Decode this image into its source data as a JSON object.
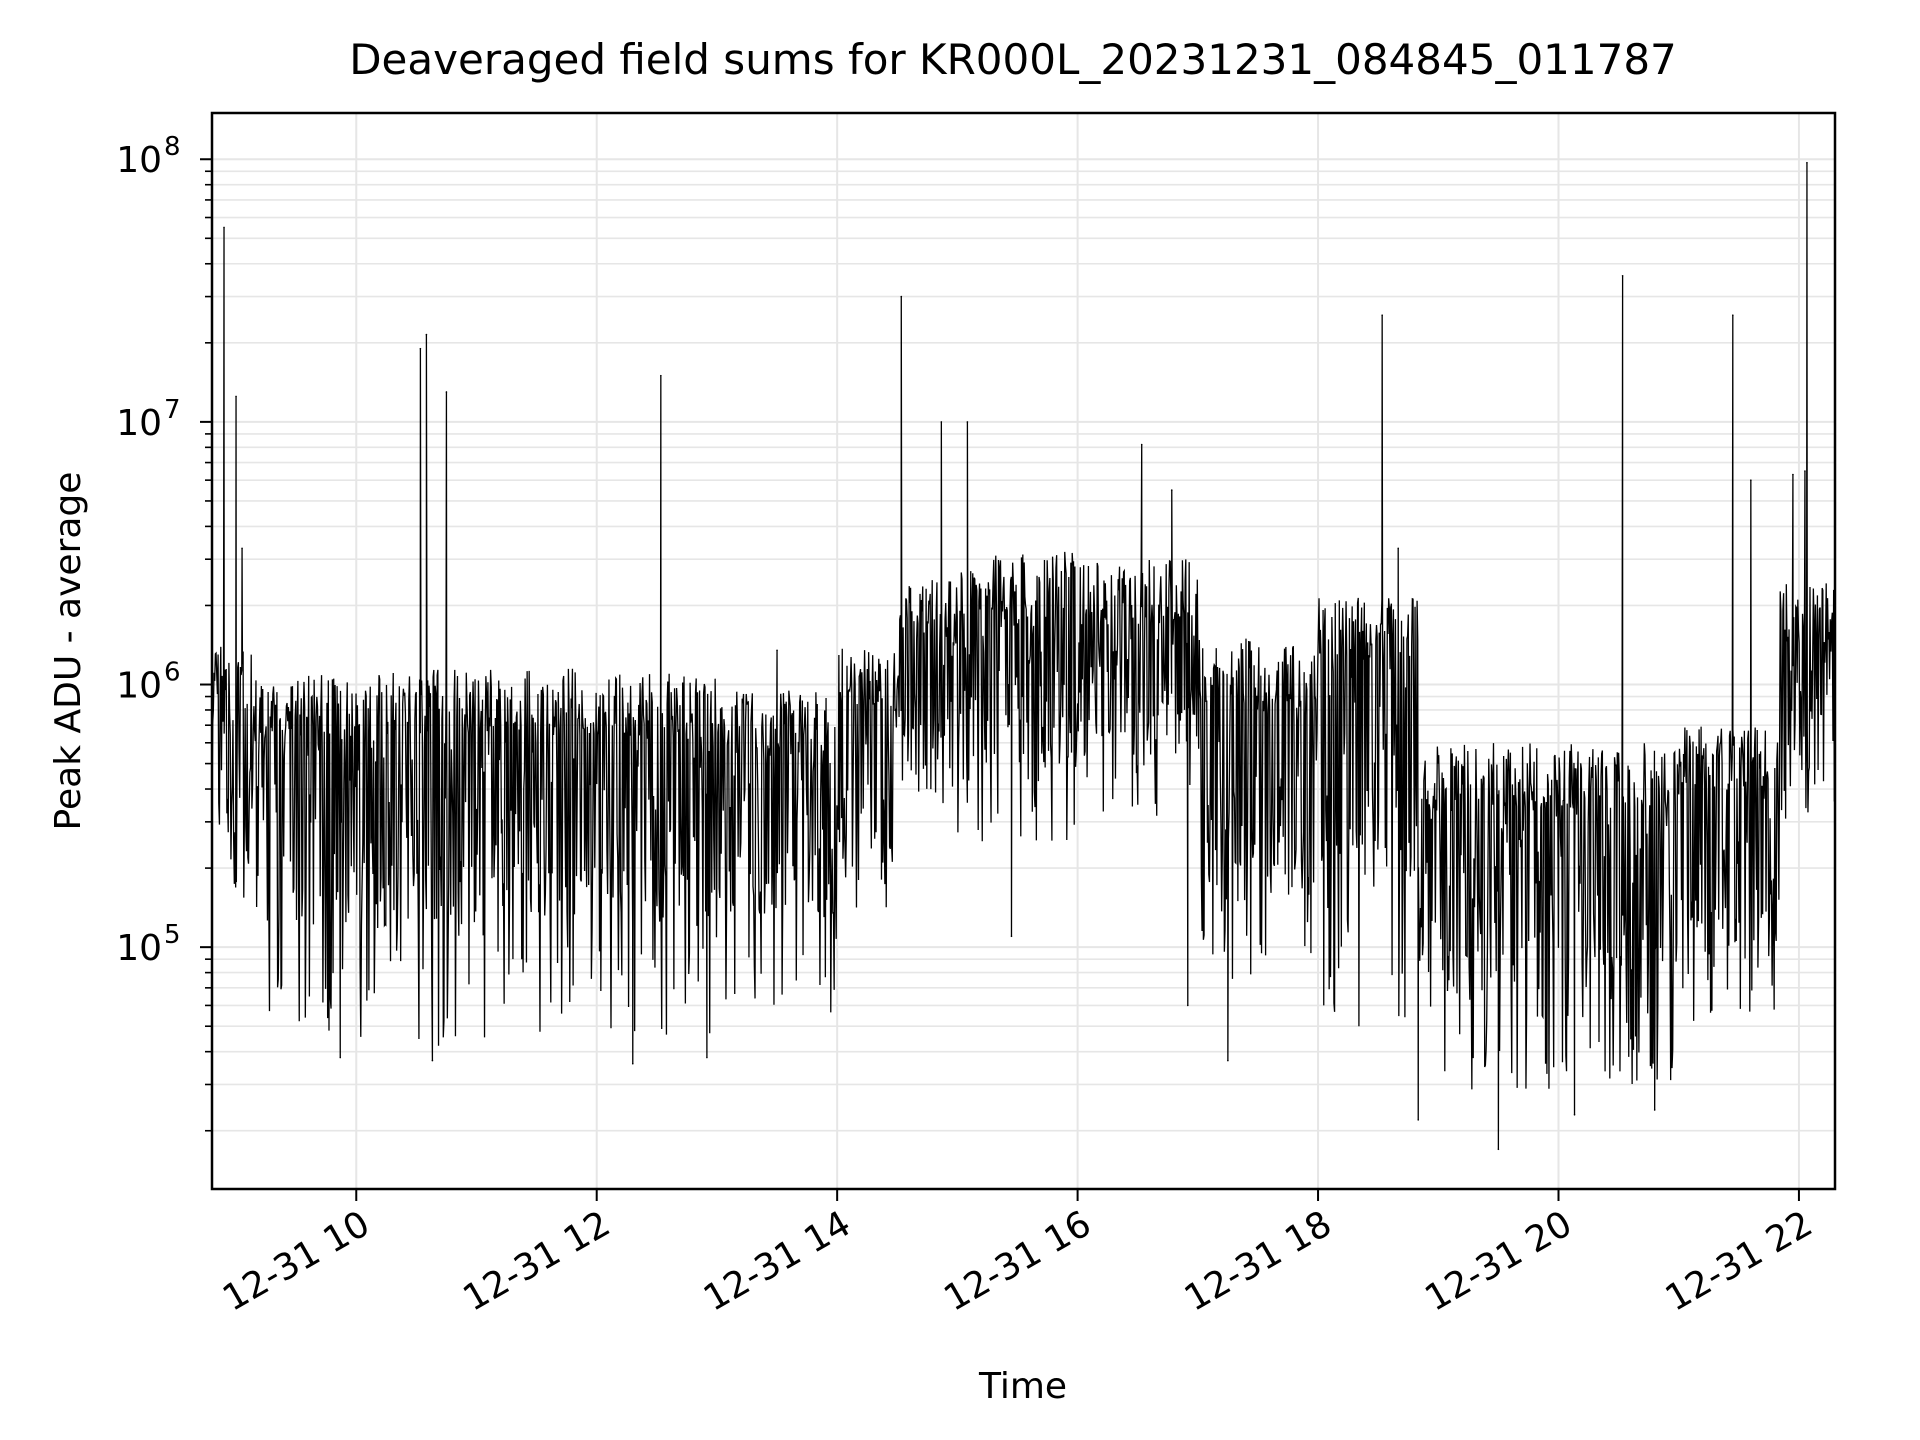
{
  "chart_data": {
    "type": "line",
    "title": "Deaveraged field sums for KR000L_20231231_084845_011787",
    "xlabel": "Time",
    "ylabel": "Peak ADU - average",
    "x_axis": {
      "kind": "datetime",
      "date": "2023-12-31",
      "range": [
        "2023-12-31 08:48",
        "2023-12-31 22:18"
      ],
      "ticks": [
        {
          "hour": 10,
          "label": "12-31 10"
        },
        {
          "hour": 12,
          "label": "12-31 12"
        },
        {
          "hour": 14,
          "label": "12-31 14"
        },
        {
          "hour": 16,
          "label": "12-31 16"
        },
        {
          "hour": 18,
          "label": "12-31 18"
        },
        {
          "hour": 20,
          "label": "12-31 20"
        },
        {
          "hour": 22,
          "label": "12-31 22"
        }
      ]
    },
    "y_axis": {
      "scale": "log",
      "range": [
        12000,
        150000000
      ],
      "ticks": [
        {
          "value": 100000,
          "base": "10",
          "exp": "5"
        },
        {
          "value": 1000000,
          "base": "10",
          "exp": "6"
        },
        {
          "value": 10000000,
          "base": "10",
          "exp": "7"
        },
        {
          "value": 100000000,
          "base": "10",
          "exp": "8"
        }
      ]
    },
    "grid": true,
    "legend": "none",
    "line_color": "#000000",
    "grid_color": "#e6e6e6",
    "segments": [
      {
        "start": "08:48",
        "end": "09:10",
        "hi": 1400000,
        "lo": 150000
      },
      {
        "start": "09:10",
        "end": "10:00",
        "hi": 1100000,
        "lo": 45000
      },
      {
        "start": "10:00",
        "end": "11:00",
        "hi": 1150000,
        "lo": 42000
      },
      {
        "start": "11:00",
        "end": "12:00",
        "hi": 1150000,
        "lo": 45000
      },
      {
        "start": "12:00",
        "end": "13:00",
        "hi": 1100000,
        "lo": 45000
      },
      {
        "start": "13:00",
        "end": "14:00",
        "hi": 950000,
        "lo": 55000
      },
      {
        "start": "14:00",
        "end": "14:30",
        "hi": 1400000,
        "lo": 120000
      },
      {
        "start": "14:30",
        "end": "15:00",
        "hi": 2500000,
        "lo": 300000
      },
      {
        "start": "15:00",
        "end": "16:00",
        "hi": 3200000,
        "lo": 250000
      },
      {
        "start": "16:00",
        "end": "17:00",
        "hi": 3000000,
        "lo": 300000
      },
      {
        "start": "17:00",
        "end": "17:30",
        "hi": 1500000,
        "lo": 70000
      },
      {
        "start": "17:30",
        "end": "18:00",
        "hi": 1400000,
        "lo": 60000
      },
      {
        "start": "18:00",
        "end": "18:50",
        "hi": 2200000,
        "lo": 50000
      },
      {
        "start": "18:50",
        "end": "20:00",
        "hi": 600000,
        "lo": 28000
      },
      {
        "start": "20:00",
        "end": "21:00",
        "hi": 600000,
        "lo": 30000
      },
      {
        "start": "21:00",
        "end": "21:50",
        "hi": 700000,
        "lo": 50000
      },
      {
        "start": "21:50",
        "end": "22:18",
        "hi": 2500000,
        "lo": 300000
      }
    ],
    "spikes": [
      {
        "time": "08:54",
        "value": 55000000
      },
      {
        "time": "09:00",
        "value": 12500000
      },
      {
        "time": "09:03",
        "value": 3300000
      },
      {
        "time": "10:32",
        "value": 19000000
      },
      {
        "time": "10:35",
        "value": 21500000
      },
      {
        "time": "10:45",
        "value": 13000000
      },
      {
        "time": "12:32",
        "value": 15000000
      },
      {
        "time": "13:30",
        "value": 1350000
      },
      {
        "time": "14:32",
        "value": 30000000
      },
      {
        "time": "14:52",
        "value": 10000000
      },
      {
        "time": "15:05",
        "value": 10000000
      },
      {
        "time": "16:32",
        "value": 8200000
      },
      {
        "time": "16:47",
        "value": 5500000
      },
      {
        "time": "18:32",
        "value": 25500000
      },
      {
        "time": "18:40",
        "value": 3300000
      },
      {
        "time": "20:32",
        "value": 36000000
      },
      {
        "time": "21:27",
        "value": 25500000
      },
      {
        "time": "21:36",
        "value": 6000000
      },
      {
        "time": "21:57",
        "value": 6300000
      },
      {
        "time": "22:04",
        "value": 97000000
      },
      {
        "time": "22:03",
        "value": 6500000
      }
    ],
    "dips": [
      {
        "time": "09:52",
        "value": 38000
      },
      {
        "time": "10:38",
        "value": 37000
      },
      {
        "time": "12:18",
        "value": 36000
      },
      {
        "time": "12:55",
        "value": 38000
      },
      {
        "time": "15:27",
        "value": 110000
      },
      {
        "time": "16:55",
        "value": 60000
      },
      {
        "time": "17:15",
        "value": 37000
      },
      {
        "time": "18:50",
        "value": 22000
      },
      {
        "time": "19:30",
        "value": 17000
      },
      {
        "time": "20:08",
        "value": 23000
      },
      {
        "time": "20:48",
        "value": 24000
      }
    ]
  }
}
